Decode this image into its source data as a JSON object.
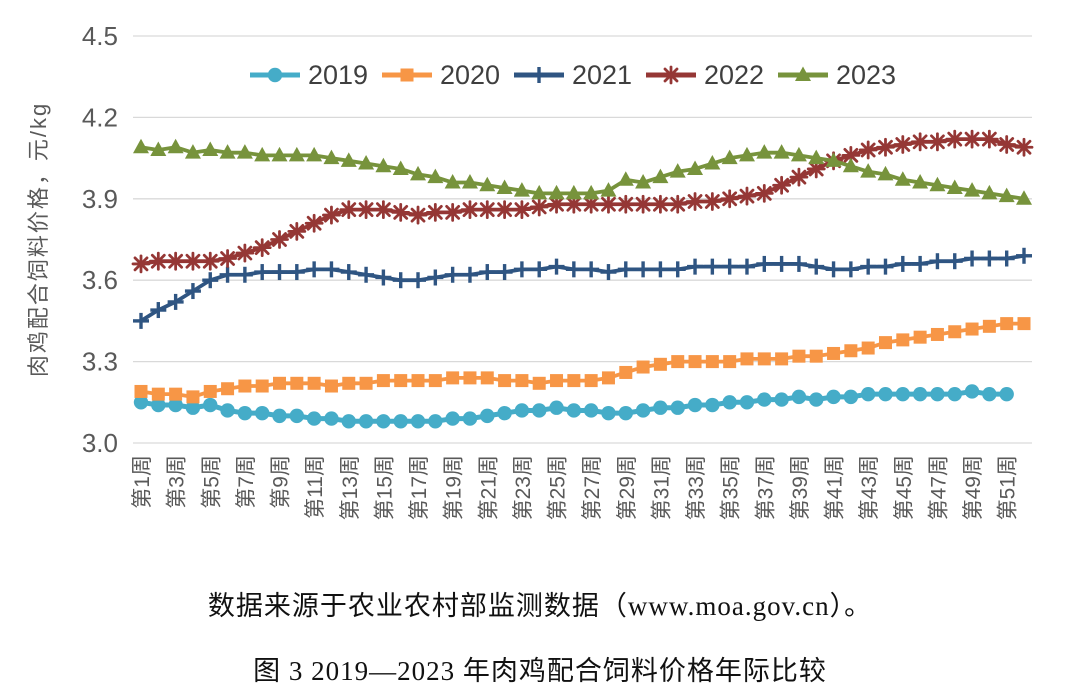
{
  "chart_data": {
    "type": "line",
    "title": "",
    "xlabel": "",
    "ylabel": "肉鸡配合饲料价格，元/kg",
    "ylim": [
      3.0,
      4.5
    ],
    "yticks": [
      3.0,
      3.3,
      3.6,
      3.9,
      4.2,
      4.5
    ],
    "grid": "horizontal",
    "legend_position": "top-center",
    "x_week_count": 52,
    "xtick_labels": [
      "第1周",
      "第3周",
      "第5周",
      "第7周",
      "第9周",
      "第11周",
      "第13周",
      "第15周",
      "第17周",
      "第19周",
      "第21周",
      "第23周",
      "第25周",
      "第27周",
      "第29周",
      "第31周",
      "第33周",
      "第35周",
      "第37周",
      "第39周",
      "第41周",
      "第43周",
      "第45周",
      "第47周",
      "第49周",
      "第51周"
    ],
    "colors": {
      "grid": "#D9D9D9",
      "axis_text": "#595959",
      "legend_text": "#3F3F3F"
    },
    "series": [
      {
        "name": "2019",
        "color": "#45ACC8",
        "marker": "circle",
        "values": [
          3.15,
          3.14,
          3.14,
          3.13,
          3.14,
          3.12,
          3.11,
          3.11,
          3.1,
          3.1,
          3.09,
          3.09,
          3.08,
          3.08,
          3.08,
          3.08,
          3.08,
          3.08,
          3.09,
          3.09,
          3.1,
          3.11,
          3.12,
          3.12,
          3.13,
          3.12,
          3.12,
          3.11,
          3.11,
          3.12,
          3.13,
          3.13,
          3.14,
          3.14,
          3.15,
          3.15,
          3.16,
          3.16,
          3.17,
          3.16,
          3.17,
          3.17,
          3.18,
          3.18,
          3.18,
          3.18,
          3.18,
          3.18,
          3.19,
          3.18,
          3.18,
          null
        ]
      },
      {
        "name": "2020",
        "color": "#F79646",
        "marker": "square",
        "values": [
          3.19,
          3.18,
          3.18,
          3.17,
          3.19,
          3.2,
          3.21,
          3.21,
          3.22,
          3.22,
          3.22,
          3.21,
          3.22,
          3.22,
          3.23,
          3.23,
          3.23,
          3.23,
          3.24,
          3.24,
          3.24,
          3.23,
          3.23,
          3.22,
          3.23,
          3.23,
          3.23,
          3.24,
          3.26,
          3.28,
          3.29,
          3.3,
          3.3,
          3.3,
          3.3,
          3.31,
          3.31,
          3.31,
          3.32,
          3.32,
          3.33,
          3.34,
          3.35,
          3.37,
          3.38,
          3.39,
          3.4,
          3.41,
          3.42,
          3.43,
          3.44,
          3.44
        ]
      },
      {
        "name": "2021",
        "color": "#2F5582",
        "marker": "plus",
        "values": [
          3.45,
          3.49,
          3.52,
          3.56,
          3.6,
          3.62,
          3.62,
          3.63,
          3.63,
          3.63,
          3.64,
          3.64,
          3.63,
          3.62,
          3.61,
          3.6,
          3.6,
          3.61,
          3.62,
          3.62,
          3.63,
          3.63,
          3.64,
          3.64,
          3.65,
          3.64,
          3.64,
          3.63,
          3.64,
          3.64,
          3.64,
          3.64,
          3.65,
          3.65,
          3.65,
          3.65,
          3.66,
          3.66,
          3.66,
          3.65,
          3.64,
          3.64,
          3.65,
          3.65,
          3.66,
          3.66,
          3.67,
          3.67,
          3.68,
          3.68,
          3.68,
          3.69
        ]
      },
      {
        "name": "2022",
        "color": "#953735",
        "marker": "asterisk",
        "values": [
          3.66,
          3.67,
          3.67,
          3.67,
          3.67,
          3.68,
          3.7,
          3.72,
          3.75,
          3.78,
          3.81,
          3.84,
          3.86,
          3.86,
          3.86,
          3.85,
          3.84,
          3.85,
          3.85,
          3.86,
          3.86,
          3.86,
          3.86,
          3.87,
          3.88,
          3.88,
          3.88,
          3.88,
          3.88,
          3.88,
          3.88,
          3.88,
          3.89,
          3.89,
          3.9,
          3.91,
          3.92,
          3.95,
          3.98,
          4.01,
          4.04,
          4.06,
          4.08,
          4.09,
          4.1,
          4.11,
          4.11,
          4.12,
          4.12,
          4.12,
          4.1,
          4.09
        ]
      },
      {
        "name": "2023",
        "color": "#77933C",
        "marker": "triangle",
        "values": [
          4.09,
          4.08,
          4.09,
          4.07,
          4.08,
          4.07,
          4.07,
          4.06,
          4.06,
          4.06,
          4.06,
          4.05,
          4.04,
          4.03,
          4.02,
          4.01,
          3.99,
          3.98,
          3.96,
          3.96,
          3.95,
          3.94,
          3.93,
          3.92,
          3.92,
          3.92,
          3.92,
          3.93,
          3.97,
          3.96,
          3.98,
          4.0,
          4.01,
          4.03,
          4.05,
          4.06,
          4.07,
          4.07,
          4.06,
          4.05,
          4.04,
          4.02,
          4.0,
          3.99,
          3.97,
          3.96,
          3.95,
          3.94,
          3.93,
          3.92,
          3.91,
          3.9
        ]
      }
    ]
  },
  "caption": {
    "source_line": "数据来源于农业农村部监测数据（www.moa.gov.cn）。",
    "figure_line": "图 3 2019—2023 年肉鸡配合饲料价格年际比较"
  }
}
